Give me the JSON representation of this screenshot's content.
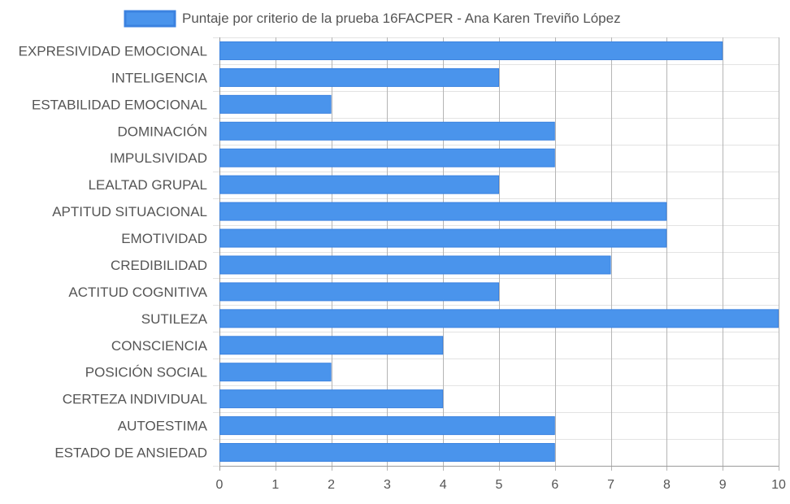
{
  "chart_data": {
    "type": "bar",
    "orientation": "horizontal",
    "legend": {
      "position": "top",
      "label": "Puntaje por criterio de la prueba 16FACPER - Ana Karen Treviño López"
    },
    "categories": [
      "EXPRESIVIDAD EMOCIONAL",
      "INTELIGENCIA",
      "ESTABILIDAD EMOCIONAL",
      "DOMINACIÓN",
      "IMPULSIVIDAD",
      "LEALTAD GRUPAL",
      "APTITUD SITUACIONAL",
      "EMOTIVIDAD",
      "CREDIBILIDAD",
      "ACTITUD COGNITIVA",
      "SUTILEZA",
      "CONSCIENCIA",
      "POSICIÓN SOCIAL",
      "CERTEZA INDIVIDUAL",
      "AUTOESTIMA",
      "ESTADO DE ANSIEDAD"
    ],
    "series": [
      {
        "name": "Puntaje por criterio de la prueba 16FACPER - Ana Karen Treviño López",
        "values": [
          9,
          5,
          2,
          6,
          6,
          5,
          8,
          8,
          7,
          5,
          10,
          4,
          2,
          4,
          6,
          6
        ]
      }
    ],
    "xlim": [
      0,
      10
    ],
    "x_ticks": [
      "0",
      "1",
      "2",
      "3",
      "4",
      "5",
      "6",
      "7",
      "8",
      "9",
      "10"
    ],
    "grid": true,
    "colors": {
      "bar_fill": "#4a94ec",
      "bar_stroke": "#3b82e0",
      "grid": "#e3e3e3",
      "grid_vertical": "#b5b5b5",
      "axis": "#9a9a9a",
      "text": "#555555"
    }
  }
}
